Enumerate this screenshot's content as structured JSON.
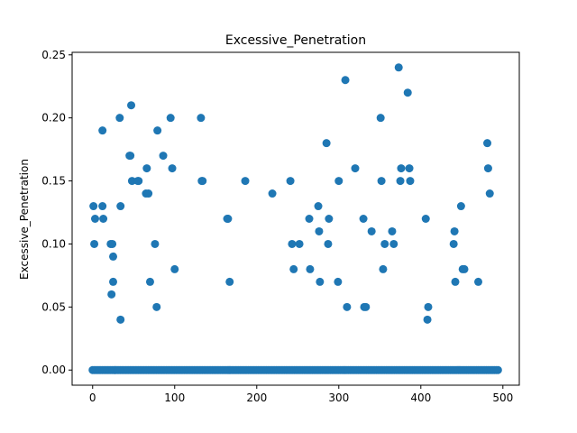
{
  "chart_data": {
    "type": "scatter",
    "title": "Excessive_Penetration",
    "xlabel": "",
    "ylabel": "Excessive_Penetration",
    "xlim": [
      -25,
      520
    ],
    "ylim": [
      -0.012,
      0.252
    ],
    "x_ticks": [
      0,
      100,
      200,
      300,
      400,
      500
    ],
    "y_ticks": [
      0.0,
      0.05,
      0.1,
      0.15,
      0.2,
      0.25
    ],
    "y_tick_labels": [
      "0.00",
      "0.05",
      "0.10",
      "0.15",
      "0.20",
      "0.25"
    ],
    "grid": false,
    "legend": "none",
    "colors": {
      "marker": "#1f77b4"
    },
    "series": [
      {
        "x": [
          1,
          2,
          3,
          12,
          12,
          13,
          22,
          23,
          24,
          25,
          25,
          33,
          34,
          34,
          45,
          46,
          47,
          48,
          55,
          56,
          65,
          66,
          68,
          70,
          76,
          78,
          79,
          86,
          95,
          97,
          100,
          132,
          133,
          134,
          164,
          165,
          167,
          186,
          219,
          241,
          243,
          245,
          252,
          264,
          265,
          275,
          276,
          277,
          285,
          287,
          288,
          299,
          300,
          308,
          310,
          320,
          330,
          331,
          333,
          340,
          351,
          352,
          354,
          356,
          365,
          367,
          373,
          375,
          376,
          384,
          386,
          387,
          406,
          408,
          409,
          440,
          441,
          442,
          449,
          451,
          453,
          470,
          481,
          482,
          484
        ],
        "y": [
          0.13,
          0.1,
          0.12,
          0.19,
          0.13,
          0.12,
          0.1,
          0.06,
          0.1,
          0.07,
          0.09,
          0.2,
          0.13,
          0.04,
          0.17,
          0.17,
          0.21,
          0.15,
          0.15,
          0.15,
          0.14,
          0.16,
          0.14,
          0.07,
          0.1,
          0.05,
          0.19,
          0.17,
          0.2,
          0.16,
          0.08,
          0.2,
          0.15,
          0.15,
          0.12,
          0.12,
          0.07,
          0.15,
          0.14,
          0.15,
          0.1,
          0.08,
          0.1,
          0.12,
          0.08,
          0.13,
          0.11,
          0.07,
          0.18,
          0.1,
          0.12,
          0.07,
          0.15,
          0.23,
          0.05,
          0.16,
          0.12,
          0.05,
          0.05,
          0.11,
          0.2,
          0.15,
          0.08,
          0.1,
          0.11,
          0.1,
          0.24,
          0.15,
          0.16,
          0.22,
          0.16,
          0.15,
          0.12,
          0.04,
          0.05,
          0.1,
          0.11,
          0.07,
          0.13,
          0.08,
          0.08,
          0.07,
          0.18,
          0.16,
          0.14
        ]
      },
      {
        "x_range": [
          0,
          494
        ],
        "y_constant": 0.0,
        "note_skip": []
      }
    ]
  }
}
